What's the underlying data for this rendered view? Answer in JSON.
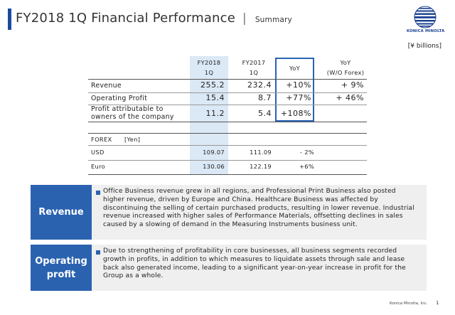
{
  "header": {
    "title": "FY2018 1Q Financial Performance",
    "separator": "|",
    "subtitle": "Summary",
    "logo_text": "KONICA MINOLTA"
  },
  "units": "[¥ billions]",
  "table": {
    "col_fy2018": [
      "FY2018",
      "1Q"
    ],
    "col_fy2017": [
      "FY2017",
      "1Q"
    ],
    "col_yoy": "YoY",
    "col_yoy_forex": [
      "YoY",
      "(W/O Forex)"
    ],
    "rows": [
      {
        "label": "Revenue",
        "fy2018": "255.2",
        "fy2017": "232.4",
        "yoy": "+10%",
        "yoy_forex": "+ 9%"
      },
      {
        "label": "Operating Profit",
        "fy2018": "15.4",
        "fy2017": "8.7",
        "yoy": "+77%",
        "yoy_forex": "+ 46%"
      },
      {
        "label_lines": [
          "Profit attributable to",
          "owners of the company"
        ],
        "fy2018": "11.2",
        "fy2017": "5.4",
        "yoy": "+108%",
        "yoy_forex": ""
      }
    ]
  },
  "forex": {
    "header_label": "FOREX",
    "header_unit": "[Yen]",
    "rows": [
      {
        "label": "USD",
        "fy2018": "109.07",
        "fy2017": "111.09",
        "yoy": "- 2%"
      },
      {
        "label": "Euro",
        "fy2018": "130.06",
        "fy2017": "122.19",
        "yoy": "+6%"
      }
    ]
  },
  "panels": [
    {
      "label_lines": [
        "Revenue"
      ],
      "lines": [
        "Office Business revenue grew in all regions, and Professional Print Business also posted",
        "higher revenue, driven by Europe and China. Healthcare Business was affected by",
        "discontinuing the selling of certain purchased products, resulting in lower revenue. Industrial",
        "revenue increased with higher sales of Performance Materials, offsetting declines in sales",
        "caused by a slowing of demand in the Measuring Instruments business unit."
      ]
    },
    {
      "label_lines": [
        "Operating",
        "profit"
      ],
      "lines": [
        "Due to strengthening of profitability in core businesses, all business segments recorded",
        "growth in profits, in addition to which measures to liquidate assets through sale and lease",
        "back also generated income, leading to a significant year-on-year increase in profit for the",
        "Group as a whole."
      ]
    }
  ],
  "footer": {
    "company": "Konica Minolta, Inc.",
    "page_number": "1"
  },
  "colors": {
    "accent_blue": "#2a62b0",
    "column_highlight": "#dbe8f5",
    "panel_background": "#efefef"
  }
}
